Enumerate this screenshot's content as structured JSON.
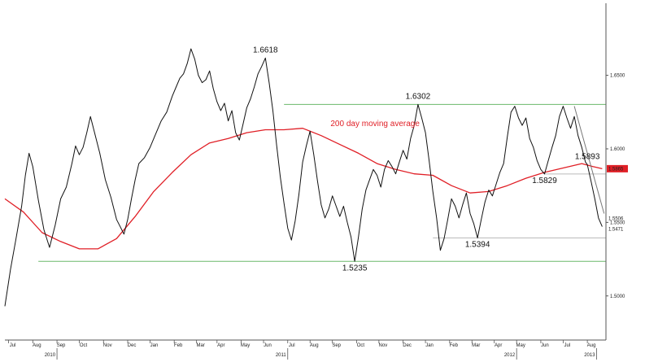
{
  "chart_data": {
    "type": "line",
    "series": [
      {
        "name": "",
        "color": "#111111",
        "points": [
          [
            0,
            1.493
          ],
          [
            3,
            1.518
          ],
          [
            6,
            1.539
          ],
          [
            9,
            1.561
          ],
          [
            11,
            1.582
          ],
          [
            13,
            1.597
          ],
          [
            15,
            1.588
          ],
          [
            18,
            1.565
          ],
          [
            21,
            1.545
          ],
          [
            24,
            1.533
          ],
          [
            27,
            1.548
          ],
          [
            30,
            1.566
          ],
          [
            33,
            1.574
          ],
          [
            36,
            1.59
          ],
          [
            38,
            1.602
          ],
          [
            40,
            1.596
          ],
          [
            42,
            1.601
          ],
          [
            44,
            1.611
          ],
          [
            46,
            1.622
          ],
          [
            48,
            1.612
          ],
          [
            51,
            1.597
          ],
          [
            54,
            1.579
          ],
          [
            57,
            1.567
          ],
          [
            60,
            1.552
          ],
          [
            62,
            1.547
          ],
          [
            64,
            1.542
          ],
          [
            66,
            1.552
          ],
          [
            68,
            1.566
          ],
          [
            70,
            1.579
          ],
          [
            72,
            1.59
          ],
          [
            75,
            1.594
          ],
          [
            78,
            1.601
          ],
          [
            81,
            1.61
          ],
          [
            84,
            1.619
          ],
          [
            87,
            1.625
          ],
          [
            90,
            1.636
          ],
          [
            92,
            1.642
          ],
          [
            94,
            1.648
          ],
          [
            96,
            1.651
          ],
          [
            98,
            1.658
          ],
          [
            100,
            1.668
          ],
          [
            102,
            1.661
          ],
          [
            104,
            1.65
          ],
          [
            106,
            1.645
          ],
          [
            108,
            1.647
          ],
          [
            110,
            1.653
          ],
          [
            112,
            1.641
          ],
          [
            114,
            1.632
          ],
          [
            116,
            1.626
          ],
          [
            118,
            1.631
          ],
          [
            120,
            1.619
          ],
          [
            122,
            1.626
          ],
          [
            124,
            1.611
          ],
          [
            126,
            1.606
          ],
          [
            128,
            1.617
          ],
          [
            130,
            1.628
          ],
          [
            132,
            1.634
          ],
          [
            134,
            1.642
          ],
          [
            136,
            1.651
          ],
          [
            138,
            1.656
          ],
          [
            140,
            1.6618
          ],
          [
            142,
            1.645
          ],
          [
            144,
            1.626
          ],
          [
            146,
            1.603
          ],
          [
            148,
            1.581
          ],
          [
            150,
            1.563
          ],
          [
            152,
            1.546
          ],
          [
            154,
            1.538
          ],
          [
            156,
            1.551
          ],
          [
            158,
            1.569
          ],
          [
            160,
            1.591
          ],
          [
            162,
            1.602
          ],
          [
            164,
            1.612
          ],
          [
            166,
            1.596
          ],
          [
            168,
            1.578
          ],
          [
            170,
            1.562
          ],
          [
            172,
            1.553
          ],
          [
            174,
            1.559
          ],
          [
            176,
            1.568
          ],
          [
            178,
            1.561
          ],
          [
            180,
            1.554
          ],
          [
            182,
            1.561
          ],
          [
            184,
            1.55
          ],
          [
            186,
            1.54
          ],
          [
            188,
            1.5235
          ],
          [
            190,
            1.54
          ],
          [
            192,
            1.559
          ],
          [
            194,
            1.572
          ],
          [
            196,
            1.579
          ],
          [
            198,
            1.586
          ],
          [
            200,
            1.582
          ],
          [
            202,
            1.574
          ],
          [
            204,
            1.586
          ],
          [
            206,
            1.592
          ],
          [
            208,
            1.588
          ],
          [
            210,
            1.583
          ],
          [
            212,
            1.591
          ],
          [
            214,
            1.599
          ],
          [
            216,
            1.593
          ],
          [
            218,
            1.607
          ],
          [
            220,
            1.616
          ],
          [
            222,
            1.6302
          ],
          [
            224,
            1.621
          ],
          [
            226,
            1.611
          ],
          [
            228,
            1.592
          ],
          [
            230,
            1.571
          ],
          [
            232,
            1.553
          ],
          [
            234,
            1.531
          ],
          [
            236,
            1.539
          ],
          [
            238,
            1.552
          ],
          [
            240,
            1.566
          ],
          [
            242,
            1.561
          ],
          [
            244,
            1.553
          ],
          [
            246,
            1.562
          ],
          [
            248,
            1.57
          ],
          [
            250,
            1.556
          ],
          [
            252,
            1.549
          ],
          [
            254,
            1.5394
          ],
          [
            256,
            1.552
          ],
          [
            258,
            1.564
          ],
          [
            260,
            1.572
          ],
          [
            262,
            1.568
          ],
          [
            264,
            1.576
          ],
          [
            266,
            1.584
          ],
          [
            268,
            1.59
          ],
          [
            270,
            1.608
          ],
          [
            272,
            1.625
          ],
          [
            274,
            1.629
          ],
          [
            276,
            1.621
          ],
          [
            278,
            1.616
          ],
          [
            280,
            1.621
          ],
          [
            282,
            1.607
          ],
          [
            284,
            1.601
          ],
          [
            286,
            1.592
          ],
          [
            288,
            1.586
          ],
          [
            290,
            1.5829
          ],
          [
            292,
            1.592
          ],
          [
            294,
            1.601
          ],
          [
            296,
            1.609
          ],
          [
            298,
            1.622
          ],
          [
            300,
            1.629
          ],
          [
            302,
            1.621
          ],
          [
            304,
            1.614
          ],
          [
            306,
            1.622
          ],
          [
            308,
            1.609
          ],
          [
            310,
            1.601
          ],
          [
            312,
            1.591
          ],
          [
            313,
            1.5893
          ],
          [
            315,
            1.578
          ],
          [
            317,
            1.566
          ],
          [
            319,
            1.553
          ],
          [
            321,
            1.5471
          ]
        ]
      },
      {
        "name": "200 day moving average",
        "color": "#e01f26",
        "points": [
          [
            0,
            1.566
          ],
          [
            10,
            1.557
          ],
          [
            20,
            1.543
          ],
          [
            30,
            1.537
          ],
          [
            40,
            1.532
          ],
          [
            50,
            1.532
          ],
          [
            60,
            1.539
          ],
          [
            70,
            1.554
          ],
          [
            80,
            1.571
          ],
          [
            90,
            1.584
          ],
          [
            100,
            1.596
          ],
          [
            110,
            1.604
          ],
          [
            120,
            1.607
          ],
          [
            130,
            1.611
          ],
          [
            140,
            1.613
          ],
          [
            150,
            1.613
          ],
          [
            160,
            1.614
          ],
          [
            170,
            1.609
          ],
          [
            180,
            1.603
          ],
          [
            190,
            1.597
          ],
          [
            200,
            1.59
          ],
          [
            210,
            1.586
          ],
          [
            220,
            1.583
          ],
          [
            230,
            1.582
          ],
          [
            240,
            1.575
          ],
          [
            250,
            1.57
          ],
          [
            260,
            1.571
          ],
          [
            270,
            1.575
          ],
          [
            280,
            1.58
          ],
          [
            290,
            1.584
          ],
          [
            300,
            1.587
          ],
          [
            310,
            1.59
          ],
          [
            316,
            1.588
          ],
          [
            321,
            1.5865
          ]
        ]
      }
    ],
    "ylim": [
      1.47,
      1.699
    ],
    "xlim": [
      0,
      323
    ],
    "y_ticks": [
      {
        "value": 1.5,
        "label": "1.5000"
      },
      {
        "value": 1.55,
        "label": "1.5500"
      },
      {
        "value": 1.6,
        "label": "1.6000"
      },
      {
        "value": 1.65,
        "label": "1.6500"
      }
    ],
    "x_month_ticks": [
      {
        "x": 2,
        "label": "Jul"
      },
      {
        "x": 15,
        "label": "Aug"
      },
      {
        "x": 28,
        "label": "Sep"
      },
      {
        "x": 40,
        "label": "Oct"
      },
      {
        "x": 53,
        "label": "Nov"
      },
      {
        "x": 66,
        "label": "Dec"
      },
      {
        "x": 78,
        "label": "Jan"
      },
      {
        "x": 91,
        "label": "Feb"
      },
      {
        "x": 103,
        "label": "Mar"
      },
      {
        "x": 114,
        "label": "Apr"
      },
      {
        "x": 127,
        "label": "May"
      },
      {
        "x": 139,
        "label": "Jun"
      },
      {
        "x": 152,
        "label": "Jul"
      },
      {
        "x": 164,
        "label": "Aug"
      },
      {
        "x": 176,
        "label": "Sep"
      },
      {
        "x": 189,
        "label": "Oct"
      },
      {
        "x": 201,
        "label": "Nov"
      },
      {
        "x": 214,
        "label": "Dec"
      },
      {
        "x": 226,
        "label": "Jan"
      },
      {
        "x": 239,
        "label": "Feb"
      },
      {
        "x": 251,
        "label": "Mar"
      },
      {
        "x": 263,
        "label": "Apr"
      },
      {
        "x": 275,
        "label": "May"
      },
      {
        "x": 288,
        "label": "Jun"
      },
      {
        "x": 300,
        "label": "Jul"
      },
      {
        "x": 313,
        "label": "Aug"
      }
    ],
    "x_year_ticks": [
      {
        "x": 28,
        "label": "2010"
      },
      {
        "x": 152,
        "label": "2011"
      },
      {
        "x": 275,
        "label": "2012"
      },
      {
        "x": 318,
        "label": "2013"
      }
    ],
    "horizontal_lines": [
      {
        "value": 1.6302,
        "x_start": 150,
        "x_end": 323,
        "color": "#6cb86c"
      },
      {
        "value": 1.5235,
        "x_start": 18,
        "x_end": 323,
        "color": "#6cb86c"
      },
      {
        "value": 1.5394,
        "x_start": 230,
        "x_end": 323,
        "color": "#bbbbbb"
      },
      {
        "value": 1.5829,
        "x_start": 290,
        "x_end": 323,
        "color": "#bbbbbb"
      }
    ],
    "trend_line": {
      "from": [
        306,
        1.629
      ],
      "to": [
        322,
        1.556
      ],
      "color": "#777777"
    },
    "annotations": [
      {
        "text": "1.6618",
        "x": 140,
        "y": 1.6618
      },
      {
        "text": "1.6302",
        "x": 222,
        "y": 1.6302
      },
      {
        "text": "1.5893",
        "x": 313,
        "y": 1.5893
      },
      {
        "text": "1.5829",
        "x": 290,
        "y": 1.5829
      },
      {
        "text": "1.5394",
        "x": 254,
        "y": 1.5394
      },
      {
        "text": "1.5235",
        "x": 188,
        "y": 1.5235
      }
    ],
    "ma_label": {
      "text": "200 day moving average",
      "x": 175,
      "y": 1.6155
    },
    "value_labels": [
      {
        "text": "1.5865",
        "y": 1.5865,
        "style": "box",
        "color": "#e01f26"
      },
      {
        "text": "1.5506",
        "y": 1.5506,
        "style": "plain"
      },
      {
        "text": "1.5471",
        "y": 1.5471,
        "style": "plain"
      }
    ]
  }
}
